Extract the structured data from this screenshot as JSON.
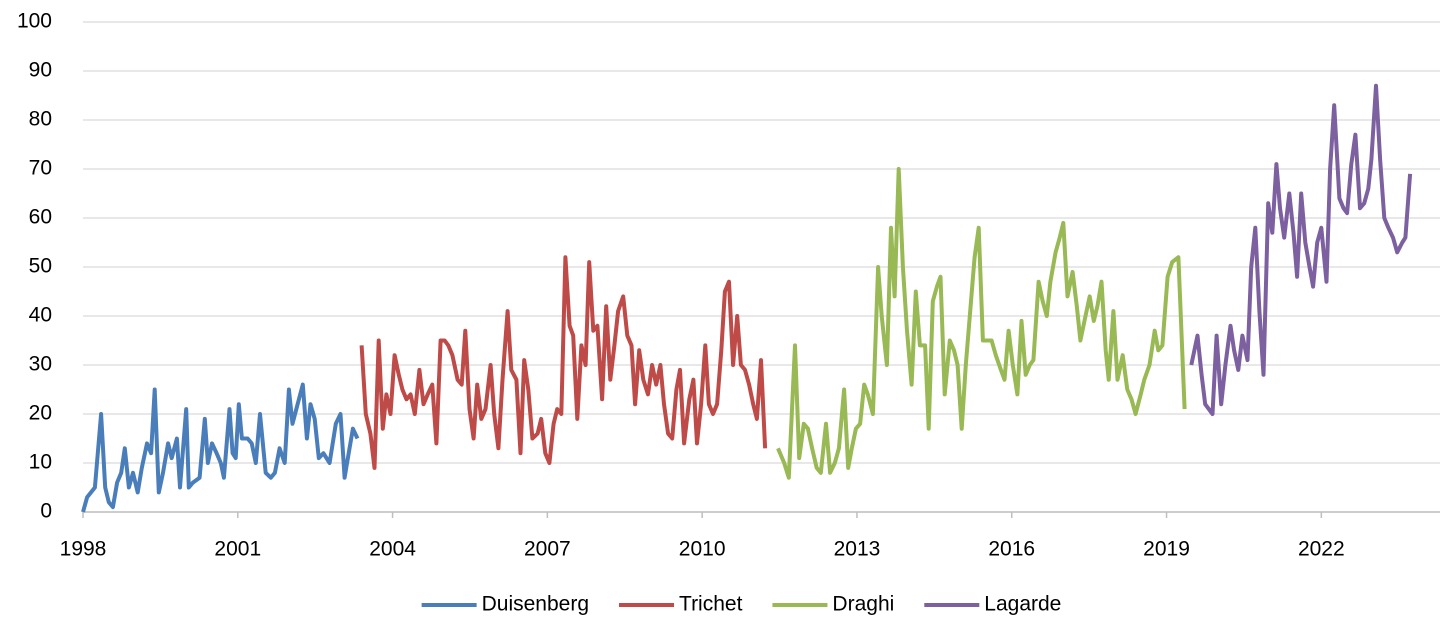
{
  "chart_data": {
    "type": "line",
    "xlim": [
      1998,
      2024.3
    ],
    "xticks": [
      1998,
      2001,
      2004,
      2007,
      2010,
      2013,
      2016,
      2019,
      2022
    ],
    "ylim": [
      0,
      100
    ],
    "yticks": [
      0,
      10,
      20,
      30,
      40,
      50,
      60,
      70,
      80,
      90,
      100
    ],
    "grid": true,
    "legend": "bottom",
    "series": [
      {
        "name": "Duisenberg",
        "color": "#4a7ebb",
        "x": [
          1998,
          1998.08,
          1998.23,
          1998.35,
          1998.43,
          1998.5,
          1998.58,
          1998.66,
          1998.74,
          1998.81,
          1998.89,
          1998.97,
          1999.06,
          1999.14,
          1999.24,
          1999.32,
          1999.39,
          1999.47,
          1999.55,
          1999.65,
          1999.72,
          1999.82,
          1999.88,
          2000,
          2000.05,
          2000.13,
          2000.26,
          2000.36,
          2000.42,
          2000.5,
          2000.59,
          2000.67,
          2000.73,
          2000.84,
          2000.9,
          2000.96,
          2001.02,
          2001.08,
          2001.19,
          2001.27,
          2001.35,
          2001.43,
          2001.54,
          2001.64,
          2001.72,
          2001.81,
          2001.91,
          2001.99,
          2002.06,
          2002.16,
          2002.26,
          2002.34,
          2002.41,
          2002.49,
          2002.57,
          2002.66,
          2002.78,
          2002.9,
          2002.99,
          2003.07,
          2003.15,
          2003.23,
          2003.32
        ],
        "values": [
          0,
          3,
          5,
          20,
          5,
          2,
          1,
          6,
          8,
          13,
          5,
          8,
          4,
          9,
          14,
          12,
          25,
          4,
          8,
          14,
          11,
          15,
          5,
          21,
          5,
          6,
          7,
          19,
          10,
          14,
          12,
          10,
          7,
          21,
          12,
          11,
          22,
          15,
          15,
          14,
          10,
          20,
          8,
          7,
          8,
          13,
          10,
          25,
          18,
          22,
          26,
          15,
          22,
          19,
          11,
          12,
          10,
          18,
          20,
          7,
          12,
          17,
          15
        ]
      },
      {
        "name": "Trichet",
        "color": "#be4b48",
        "x": [
          2003.4,
          2003.48,
          2003.57,
          2003.65,
          2003.73,
          2003.81,
          2003.88,
          2003.96,
          2004.04,
          2004.12,
          2004.19,
          2004.27,
          2004.35,
          2004.43,
          2004.52,
          2004.6,
          2004.68,
          2004.77,
          2004.85,
          2004.93,
          2005.01,
          2005.08,
          2005.16,
          2005.26,
          2005.34,
          2005.41,
          2005.49,
          2005.57,
          2005.64,
          2005.72,
          2005.8,
          2005.9,
          2005.97,
          2006.05,
          2006.13,
          2006.23,
          2006.3,
          2006.4,
          2006.48,
          2006.55,
          2006.63,
          2006.71,
          2006.81,
          2006.88,
          2006.96,
          2007.04,
          2007.12,
          2007.19,
          2007.27,
          2007.35,
          2007.43,
          2007.5,
          2007.58,
          2007.66,
          2007.74,
          2007.81,
          2007.89,
          2007.97,
          2008.06,
          2008.14,
          2008.22,
          2008.3,
          2008.37,
          2008.47,
          2008.55,
          2008.63,
          2008.7,
          2008.78,
          2008.86,
          2008.95,
          2009.03,
          2009.11,
          2009.19,
          2009.26,
          2009.34,
          2009.42,
          2009.5,
          2009.57,
          2009.65,
          2009.75,
          2009.83,
          2009.9,
          2009.98,
          2010.06,
          2010.13,
          2010.21,
          2010.29,
          2010.37,
          2010.44,
          2010.52,
          2010.6,
          2010.68,
          2010.75,
          2010.83,
          2010.91,
          2010.99,
          2011.06,
          2011.14,
          2011.22
        ],
        "values": [
          34,
          20,
          16,
          9,
          35,
          17,
          24,
          20,
          32,
          28,
          25,
          23,
          24,
          20,
          29,
          22,
          24,
          26,
          14,
          35,
          35,
          34,
          32,
          27,
          26,
          37,
          21,
          15,
          26,
          19,
          21,
          30,
          20,
          13,
          27,
          41,
          29,
          27,
          12,
          31,
          25,
          15,
          16,
          19,
          12,
          10,
          18,
          21,
          20,
          52,
          38,
          36,
          19,
          34,
          30,
          51,
          37,
          38,
          23,
          42,
          27,
          34,
          41,
          44,
          36,
          34,
          22,
          33,
          27,
          24,
          30,
          26,
          30,
          22,
          16,
          15,
          25,
          29,
          14,
          23,
          27,
          14,
          22,
          34,
          22,
          20,
          22,
          33,
          45,
          47,
          30,
          40,
          30,
          29,
          26,
          22,
          19,
          31,
          13
        ]
      },
      {
        "name": "Draghi",
        "color": "#98b954",
        "x": [
          2011.47,
          2011.59,
          2011.68,
          2011.8,
          2011.88,
          2011.97,
          2012.05,
          2012.13,
          2012.22,
          2012.3,
          2012.4,
          2012.48,
          2012.57,
          2012.65,
          2012.75,
          2012.83,
          2012.9,
          2012.98,
          2013.06,
          2013.14,
          2013.21,
          2013.31,
          2013.41,
          2013.48,
          2013.58,
          2013.66,
          2013.73,
          2013.81,
          2013.89,
          2013.97,
          2014.06,
          2014.14,
          2014.22,
          2014.32,
          2014.39,
          2014.47,
          2014.55,
          2014.62,
          2014.7,
          2014.8,
          2014.88,
          2014.95,
          2015.03,
          2015.11,
          2015.21,
          2015.28,
          2015.36,
          2015.44,
          2015.53,
          2015.61,
          2015.69,
          2015.79,
          2015.86,
          2015.94,
          2016.02,
          2016.11,
          2016.19,
          2016.27,
          2016.35,
          2016.42,
          2016.52,
          2016.6,
          2016.68,
          2016.75,
          2016.85,
          2016.93,
          2017,
          2017.08,
          2017.18,
          2017.26,
          2017.33,
          2017.43,
          2017.51,
          2017.59,
          2017.66,
          2017.74,
          2017.82,
          2017.88,
          2017.97,
          2018.05,
          2018.15,
          2018.24,
          2018.32,
          2018.4,
          2018.5,
          2018.57,
          2018.67,
          2018.77,
          2018.84,
          2018.92,
          2019.02,
          2019.11,
          2019.23,
          2019.35
        ],
        "values": [
          13,
          10,
          7,
          34,
          11,
          18,
          17,
          13,
          9,
          8,
          18,
          8,
          10,
          13,
          25,
          9,
          13,
          17,
          18,
          26,
          24,
          20,
          50,
          40,
          30,
          58,
          44,
          70,
          50,
          37,
          26,
          45,
          34,
          34,
          17,
          43,
          46,
          48,
          24,
          35,
          33,
          30,
          17,
          30,
          43,
          52,
          58,
          35,
          35,
          35,
          32,
          29,
          27,
          37,
          30,
          24,
          39,
          28,
          30,
          31,
          47,
          43,
          40,
          47,
          53,
          56,
          59,
          44,
          49,
          42,
          35,
          40,
          44,
          39,
          42,
          47,
          33,
          27,
          41,
          27,
          32,
          25,
          23,
          20,
          24,
          27,
          30,
          37,
          33,
          34,
          48,
          51,
          52,
          21
        ]
      },
      {
        "name": "Lagarde",
        "color": "#7d60a0",
        "x": [
          2019.48,
          2019.6,
          2019.68,
          2019.75,
          2019.89,
          2019.97,
          2020.06,
          2020.14,
          2020.24,
          2020.31,
          2020.39,
          2020.47,
          2020.57,
          2020.64,
          2020.72,
          2020.8,
          2020.88,
          2020.97,
          2021.05,
          2021.13,
          2021.2,
          2021.28,
          2021.38,
          2021.46,
          2021.53,
          2021.61,
          2021.69,
          2021.77,
          2021.84,
          2021.92,
          2022,
          2022.1,
          2022.17,
          2022.25,
          2022.35,
          2022.43,
          2022.5,
          2022.58,
          2022.66,
          2022.75,
          2022.83,
          2022.91,
          2022.97,
          2023.06,
          2023.14,
          2023.22,
          2023.3,
          2023.39,
          2023.47,
          2023.57,
          2023.63,
          2023.72
        ],
        "values": [
          30,
          36,
          28,
          22,
          20,
          36,
          22,
          30,
          38,
          33,
          29,
          36,
          31,
          50,
          58,
          41,
          28,
          63,
          57,
          71,
          62,
          56,
          65,
          57,
          48,
          65,
          55,
          50,
          46,
          55,
          58,
          47,
          70,
          83,
          64,
          62,
          61,
          71,
          77,
          62,
          63,
          66,
          72,
          87,
          72,
          60,
          58,
          56,
          53,
          55,
          56,
          69
        ]
      }
    ]
  }
}
